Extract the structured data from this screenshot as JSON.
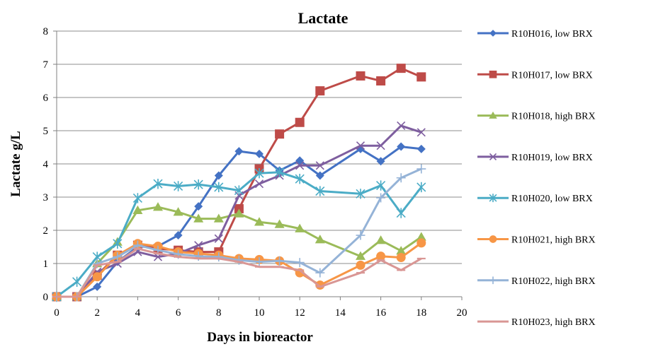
{
  "chart_data": {
    "type": "line",
    "title": "Lactate",
    "xlabel": "Days in bioreactor",
    "ylabel": "Lactate g/L",
    "xlim": [
      0,
      20
    ],
    "ylim": [
      0,
      8
    ],
    "x_ticks": [
      "0",
      "2",
      "4",
      "6",
      "8",
      "10",
      "12",
      "14",
      "16",
      "18",
      "20"
    ],
    "y_ticks": [
      "0",
      "1",
      "2",
      "3",
      "4",
      "5",
      "6",
      "7",
      "8"
    ],
    "grid": "horizontal",
    "legend": "right",
    "series": [
      {
        "name": "R10H016, low BRX",
        "color": "#4472C4",
        "marker": "diamond",
        "x": [
          0,
          1,
          2,
          3,
          4,
          5,
          6,
          7,
          8,
          9,
          10,
          11,
          12,
          13,
          15,
          16,
          17,
          18
        ],
        "y": [
          0,
          0,
          0.3,
          1.05,
          1.5,
          1.52,
          1.85,
          2.72,
          3.65,
          4.38,
          4.3,
          3.8,
          4.1,
          3.65,
          4.45,
          4.08,
          4.52,
          4.45
        ]
      },
      {
        "name": "R10H017, low BRX",
        "color": "#BE4B48",
        "marker": "square",
        "x": [
          0,
          1,
          2,
          3,
          4,
          5,
          6,
          7,
          8,
          9,
          10,
          11,
          12,
          13,
          15,
          16,
          17,
          18
        ],
        "y": [
          0,
          0,
          0.65,
          1.25,
          1.55,
          1.45,
          1.4,
          1.35,
          1.35,
          2.65,
          3.85,
          4.9,
          5.25,
          6.2,
          6.65,
          6.5,
          6.88,
          6.62
        ]
      },
      {
        "name": "R10H018, high BRX",
        "color": "#9BBB59",
        "marker": "triangle",
        "x": [
          0,
          1,
          2,
          3,
          4,
          5,
          6,
          7,
          8,
          9,
          10,
          11,
          12,
          13,
          15,
          16,
          17,
          18
        ],
        "y": [
          0,
          0,
          1.0,
          1.65,
          2.6,
          2.7,
          2.55,
          2.35,
          2.35,
          2.5,
          2.25,
          2.18,
          2.05,
          1.72,
          1.22,
          1.7,
          1.38,
          1.8
        ]
      },
      {
        "name": "R10H019, low BRX",
        "color": "#7E5E9F",
        "marker": "x",
        "x": [
          0,
          1,
          2,
          3,
          4,
          5,
          6,
          7,
          8,
          9,
          10,
          11,
          12,
          13,
          15,
          16,
          17,
          18
        ],
        "y": [
          0,
          0,
          0.75,
          1.0,
          1.35,
          1.2,
          1.3,
          1.55,
          1.75,
          3.05,
          3.4,
          3.65,
          3.95,
          3.95,
          4.55,
          4.55,
          5.15,
          4.95
        ]
      },
      {
        "name": "R10H020, low BRX",
        "color": "#4BACC6",
        "marker": "asterisk",
        "x": [
          0,
          1,
          2,
          3,
          4,
          5,
          6,
          7,
          8,
          9,
          10,
          11,
          12,
          13,
          15,
          16,
          17,
          18
        ],
        "y": [
          0,
          0.45,
          1.2,
          1.6,
          2.97,
          3.4,
          3.33,
          3.38,
          3.3,
          3.2,
          3.72,
          3.75,
          3.55,
          3.18,
          3.1,
          3.35,
          2.52,
          3.3
        ]
      },
      {
        "name": "R10H021, high BRX",
        "color": "#F79646",
        "marker": "circle",
        "x": [
          0,
          1,
          2,
          3,
          4,
          5,
          6,
          7,
          8,
          9,
          10,
          11,
          12,
          13,
          15,
          16,
          17,
          18
        ],
        "y": [
          0,
          0,
          0.6,
          1.25,
          1.6,
          1.52,
          1.35,
          1.3,
          1.25,
          1.15,
          1.12,
          1.08,
          0.72,
          0.35,
          0.95,
          1.22,
          1.18,
          1.62
        ]
      },
      {
        "name": "R10H022, high BRX",
        "color": "#95B3D7",
        "marker": "plus",
        "x": [
          0,
          1,
          2,
          3,
          4,
          5,
          6,
          7,
          8,
          9,
          10,
          11,
          12,
          13,
          15,
          16,
          17,
          18
        ],
        "y": [
          0,
          0,
          1.0,
          1.2,
          1.55,
          1.4,
          1.28,
          1.22,
          1.2,
          1.1,
          1.05,
          1.08,
          1.03,
          0.72,
          1.85,
          2.98,
          3.58,
          3.85
        ]
      },
      {
        "name": "R10H023, high BRX",
        "color": "#D99694",
        "marker": "dash",
        "x": [
          0,
          1,
          2,
          3,
          4,
          5,
          6,
          7,
          8,
          9,
          10,
          11,
          12,
          13,
          15,
          16,
          17,
          18
        ],
        "y": [
          0,
          0,
          0.95,
          1.05,
          1.45,
          1.3,
          1.2,
          1.15,
          1.15,
          1.05,
          0.9,
          0.9,
          0.8,
          0.3,
          0.72,
          1.1,
          0.8,
          1.15
        ]
      }
    ]
  }
}
